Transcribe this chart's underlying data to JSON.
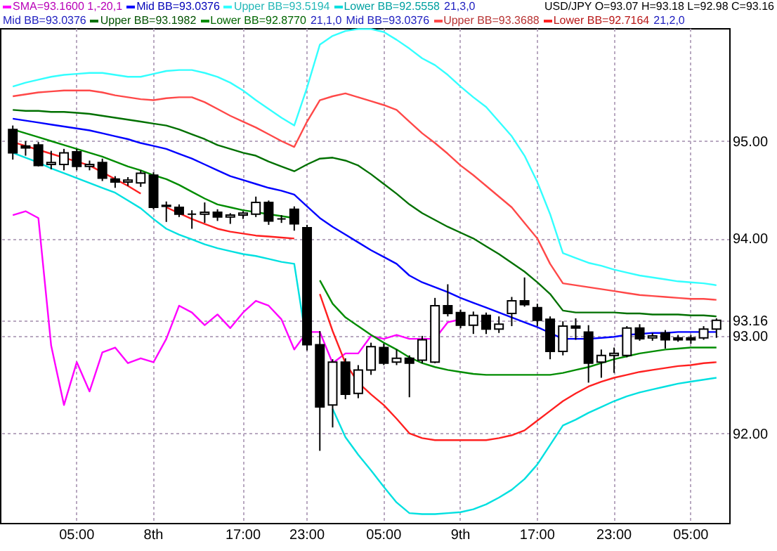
{
  "chart_data": {
    "type": "candlestick",
    "title": "USD/JPY O=93.07 H=93.18 L=92.98 C=93.16",
    "categories": [
      null,
      null,
      null,
      null,
      null,
      "05:00",
      null,
      null,
      null,
      null,
      null,
      "8th",
      null,
      null,
      null,
      null,
      null,
      null,
      "17:00",
      null,
      null,
      null,
      null,
      "23:00",
      null,
      null,
      null,
      null,
      null,
      "05:00",
      null,
      null,
      null,
      null,
      null,
      "9th",
      null,
      null,
      null,
      null,
      null,
      "17:00",
      null,
      null,
      null,
      null,
      null,
      "23:00",
      null,
      null,
      null,
      null,
      null,
      "05:00",
      null,
      null
    ],
    "ohlc": [
      [
        95.12,
        95.16,
        94.81,
        94.88
      ],
      [
        94.95,
        95.0,
        94.85,
        94.93
      ],
      [
        94.96,
        94.99,
        94.74,
        94.75
      ],
      [
        94.76,
        94.9,
        94.71,
        94.78
      ],
      [
        94.76,
        94.92,
        94.7,
        94.88
      ],
      [
        94.89,
        94.92,
        94.7,
        94.74
      ],
      [
        94.74,
        94.8,
        94.7,
        94.76
      ],
      [
        94.78,
        94.82,
        94.59,
        94.62
      ],
      [
        94.61,
        94.64,
        94.52,
        94.58
      ],
      [
        94.58,
        94.63,
        94.54,
        94.6
      ],
      [
        94.57,
        94.7,
        94.53,
        94.67
      ],
      [
        94.65,
        94.68,
        94.3,
        94.32
      ],
      [
        94.33,
        94.38,
        94.17,
        94.34
      ],
      [
        94.32,
        94.35,
        94.22,
        94.25
      ],
      [
        94.25,
        94.29,
        94.1,
        94.25
      ],
      [
        94.25,
        94.37,
        94.16,
        94.27
      ],
      [
        94.27,
        94.3,
        94.18,
        94.22
      ],
      [
        94.22,
        94.26,
        94.15,
        94.24
      ],
      [
        94.24,
        94.28,
        94.2,
        94.26
      ],
      [
        94.25,
        94.43,
        94.22,
        94.37
      ],
      [
        94.37,
        94.39,
        94.14,
        94.18
      ],
      [
        94.2,
        94.24,
        94.16,
        94.2
      ],
      [
        94.3,
        94.33,
        94.08,
        94.15
      ],
      [
        94.11,
        94.14,
        92.85,
        92.91
      ],
      [
        92.91,
        93.05,
        91.82,
        92.27
      ],
      [
        92.29,
        92.76,
        92.06,
        92.73
      ],
      [
        92.73,
        92.77,
        92.35,
        92.4
      ],
      [
        92.41,
        92.7,
        92.36,
        92.65
      ],
      [
        92.65,
        92.93,
        92.6,
        92.89
      ],
      [
        92.88,
        92.92,
        92.7,
        92.72
      ],
      [
        92.73,
        92.86,
        92.7,
        92.77
      ],
      [
        92.77,
        92.8,
        92.37,
        92.72
      ],
      [
        92.75,
        93.0,
        92.72,
        92.96
      ],
      [
        92.73,
        93.39,
        92.72,
        93.31
      ],
      [
        93.31,
        93.53,
        93.2,
        93.23
      ],
      [
        93.24,
        93.27,
        93.08,
        93.11
      ],
      [
        93.11,
        93.25,
        93.02,
        93.21
      ],
      [
        93.21,
        93.24,
        93.02,
        93.07
      ],
      [
        93.07,
        93.2,
        93.03,
        93.12
      ],
      [
        93.23,
        93.4,
        93.1,
        93.36
      ],
      [
        93.36,
        93.6,
        93.3,
        93.32
      ],
      [
        93.29,
        93.33,
        93.1,
        93.16
      ],
      [
        93.17,
        93.2,
        92.76,
        92.84
      ],
      [
        92.84,
        93.15,
        92.8,
        93.1
      ],
      [
        93.1,
        93.18,
        92.96,
        93.08
      ],
      [
        93.04,
        93.11,
        92.52,
        92.72
      ],
      [
        92.73,
        92.86,
        92.57,
        92.8
      ],
      [
        92.8,
        92.88,
        92.62,
        92.82
      ],
      [
        92.8,
        93.1,
        92.78,
        93.08
      ],
      [
        93.08,
        93.12,
        92.95,
        92.97
      ],
      [
        92.98,
        93.03,
        92.95,
        93.0
      ],
      [
        93.03,
        93.06,
        92.87,
        92.96
      ],
      [
        92.98,
        93.01,
        92.94,
        92.96
      ],
      [
        92.98,
        93.01,
        92.92,
        92.96
      ],
      [
        92.98,
        93.1,
        92.96,
        93.07
      ],
      [
        93.07,
        93.18,
        92.98,
        93.16
      ]
    ],
    "series": [
      {
        "type": "line",
        "name": "SMA=93.1600 1,-20,1",
        "color": "#ff00ff",
        "values": [
          94.24,
          94.28,
          94.21,
          92.9,
          92.29,
          92.73,
          92.43,
          92.83,
          92.88,
          92.72,
          92.77,
          92.73,
          92.97,
          93.31,
          93.24,
          93.11,
          93.22,
          93.08,
          93.24,
          93.36,
          93.31,
          93.17,
          92.86,
          93.04,
          93.04,
          92.72,
          92.82,
          92.82,
          93.0,
          92.97,
          93.01,
          92.97,
          92.97,
          92.97,
          93.14,
          93.17,
          null,
          null,
          null,
          null,
          null,
          null,
          null,
          null,
          null,
          null,
          null,
          null,
          null,
          null,
          null,
          null,
          null,
          null,
          null,
          null
        ]
      },
      {
        "type": "line",
        "name": "Mid BB=93.0376",
        "color": "#0000ff",
        "values": [
          95.23,
          95.21,
          95.19,
          95.17,
          95.15,
          95.13,
          95.11,
          95.08,
          95.05,
          95.02,
          94.98,
          94.95,
          94.92,
          94.87,
          94.82,
          94.76,
          94.7,
          94.64,
          94.6,
          94.56,
          94.52,
          94.49,
          94.45,
          94.33,
          94.21,
          94.12,
          94.04,
          93.96,
          93.88,
          93.81,
          93.74,
          93.62,
          93.55,
          93.5,
          93.45,
          93.39,
          93.34,
          93.29,
          93.24,
          93.19,
          93.14,
          93.09,
          93.03,
          92.97,
          92.97,
          92.97,
          92.98,
          92.99,
          93.01,
          93.02,
          93.03,
          93.03,
          93.04,
          93.04,
          93.04,
          93.04
        ]
      },
      {
        "type": "line",
        "name": "Upper BB=93.5194",
        "color": "#33ffff",
        "values": [
          95.56,
          95.6,
          95.63,
          95.66,
          95.68,
          95.69,
          95.7,
          95.7,
          95.68,
          95.66,
          95.66,
          95.69,
          95.72,
          95.73,
          95.73,
          95.7,
          95.66,
          95.6,
          95.52,
          95.42,
          95.33,
          95.24,
          95.16,
          95.55,
          95.99,
          96.08,
          96.13,
          96.15,
          96.15,
          96.12,
          96.04,
          95.95,
          95.85,
          95.78,
          95.68,
          95.56,
          95.45,
          95.35,
          95.2,
          95.05,
          94.85,
          94.58,
          94.25,
          93.85,
          93.8,
          93.75,
          93.72,
          93.68,
          93.65,
          93.62,
          93.6,
          93.58,
          93.56,
          93.55,
          93.54,
          93.52
        ]
      },
      {
        "type": "line",
        "name": "Lower BB=92.5558",
        "color": "#00e0e0",
        "values": [
          94.88,
          94.83,
          94.78,
          94.72,
          94.67,
          94.62,
          94.57,
          94.52,
          94.47,
          94.39,
          94.31,
          94.2,
          94.1,
          94.04,
          93.99,
          93.94,
          93.9,
          93.87,
          93.84,
          93.82,
          93.79,
          93.76,
          93.74,
          92.9,
          null,
          92.25,
          91.96,
          91.78,
          91.62,
          91.45,
          91.29,
          91.18,
          91.17,
          91.17,
          91.18,
          91.19,
          91.22,
          91.27,
          91.34,
          91.42,
          91.53,
          91.68,
          91.88,
          92.08,
          92.14,
          92.21,
          92.27,
          92.33,
          92.38,
          92.42,
          92.45,
          92.48,
          92.51,
          92.53,
          92.55,
          92.57
        ]
      },
      {
        "type": "line",
        "name": "Upper BB=93.1982",
        "color": "#007000",
        "values": [
          95.32,
          95.31,
          95.31,
          95.3,
          95.3,
          95.29,
          95.28,
          95.26,
          95.24,
          95.22,
          95.2,
          95.18,
          95.16,
          95.12,
          95.07,
          95.02,
          94.96,
          94.92,
          94.88,
          94.85,
          94.79,
          94.74,
          94.69,
          94.76,
          94.82,
          94.83,
          94.8,
          94.75,
          94.66,
          94.56,
          94.46,
          94.35,
          94.26,
          94.19,
          94.12,
          94.06,
          94.0,
          93.92,
          93.84,
          93.75,
          93.66,
          93.55,
          93.43,
          93.26,
          93.24,
          93.24,
          93.24,
          93.24,
          93.23,
          93.23,
          93.22,
          93.22,
          93.22,
          93.21,
          93.21,
          93.2
        ]
      },
      {
        "type": "line",
        "name": "Lower BB=92.8770",
        "color": "#008c00",
        "values": [
          95.12,
          95.08,
          95.04,
          95.0,
          94.96,
          94.92,
          94.88,
          94.84,
          94.79,
          94.74,
          94.7,
          94.65,
          94.61,
          94.55,
          94.48,
          94.41,
          94.35,
          94.32,
          94.29,
          94.27,
          94.25,
          94.23,
          94.21,
          null,
          93.57,
          93.33,
          93.19,
          93.1,
          93.01,
          92.93,
          92.86,
          92.78,
          92.72,
          92.68,
          92.65,
          92.63,
          92.61,
          92.6,
          92.6,
          92.6,
          92.6,
          92.6,
          92.6,
          92.62,
          92.65,
          92.68,
          92.72,
          92.76,
          92.79,
          92.82,
          92.84,
          92.86,
          92.87,
          92.88,
          92.88,
          92.88
        ]
      },
      {
        "type": "line",
        "name": "Upper BB=93.3688",
        "color": "#ff4848",
        "values": [
          95.46,
          95.48,
          95.5,
          95.51,
          95.52,
          95.52,
          95.52,
          95.5,
          95.47,
          95.45,
          95.43,
          95.42,
          95.44,
          95.45,
          95.45,
          95.4,
          95.33,
          95.26,
          95.2,
          95.14,
          95.07,
          95.0,
          94.94,
          95.2,
          95.42,
          95.46,
          95.49,
          95.45,
          95.41,
          95.37,
          95.32,
          95.2,
          95.08,
          94.98,
          94.87,
          94.75,
          94.65,
          94.54,
          94.43,
          94.32,
          94.16,
          94.0,
          93.74,
          93.54,
          93.52,
          93.5,
          93.48,
          93.46,
          93.44,
          93.42,
          93.41,
          93.4,
          93.39,
          93.38,
          93.38,
          93.37
        ]
      },
      {
        "type": "line",
        "name": "Lower BB=92.7164",
        "color": "#ff2020",
        "values": [
          94.99,
          94.95,
          94.91,
          94.87,
          94.83,
          94.79,
          94.75,
          94.68,
          94.61,
          94.54,
          94.46,
          null,
          94.32,
          94.26,
          94.2,
          94.15,
          94.1,
          94.07,
          94.05,
          94.03,
          94.02,
          94.01,
          94.0,
          null,
          93.43,
          93.05,
          92.72,
          92.52,
          92.4,
          92.29,
          92.15,
          92.0,
          91.95,
          91.93,
          91.93,
          91.93,
          91.93,
          91.93,
          91.95,
          91.98,
          92.03,
          92.13,
          92.23,
          92.33,
          92.41,
          92.48,
          92.53,
          92.57,
          92.6,
          92.63,
          92.65,
          92.67,
          92.69,
          92.7,
          92.72,
          92.73
        ]
      }
    ],
    "ylim": [
      91.08,
      96.16
    ],
    "yticks": [
      {
        "value": 92,
        "label": "92.00"
      },
      {
        "value": 93,
        "label": "93.00"
      },
      93.16,
      {
        "value": 94,
        "label": "94.00"
      },
      {
        "value": 95,
        "label": "95.00"
      }
    ],
    "grid": true,
    "legend": "top",
    "annotations": [
      "21,3,0",
      "Mid BB=93.0376",
      "21,1,0",
      "Mid BB=93.0376",
      "21,2,0"
    ]
  }
}
